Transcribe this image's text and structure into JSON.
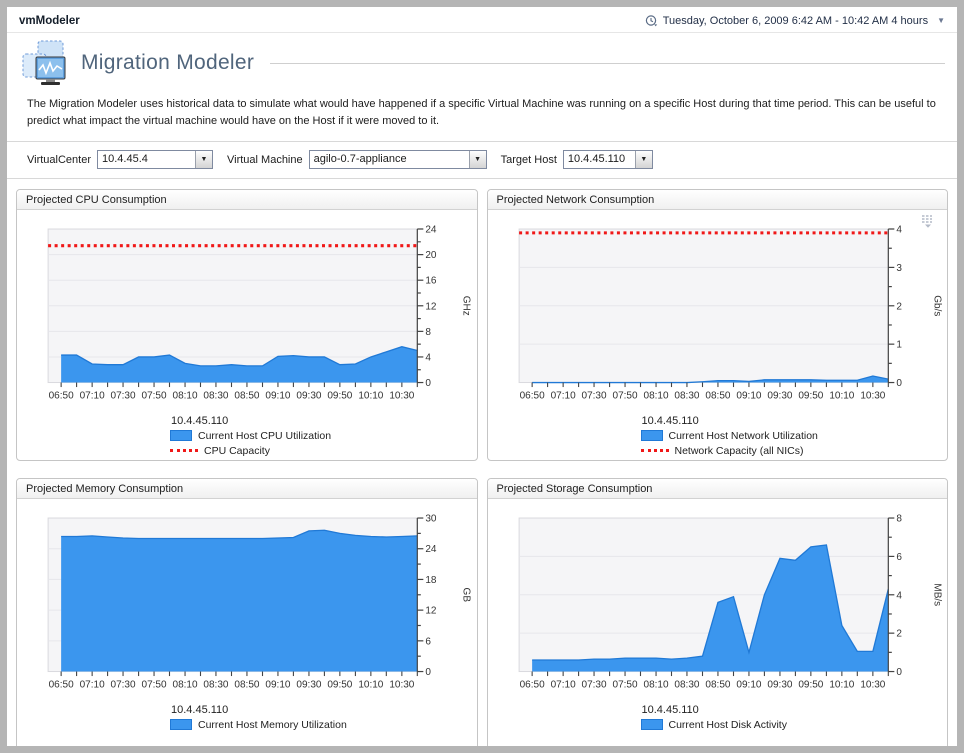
{
  "window": {
    "app_title": "vmModeler",
    "timeframe": "Tuesday, October 6, 2009 6:42 AM - 10:42 AM 4 hours"
  },
  "page": {
    "title": "Migration Modeler",
    "description": "The Migration Modeler uses historical data to simulate what would have happened if a specific Virtual Machine was running on a specific Host during that time period. This can be useful to predict what impact the virtual machine would have on the Host if it were moved to it."
  },
  "controls": {
    "virtualcenter_label": "VirtualCenter",
    "virtualcenter_value": "10.4.45.4",
    "vm_label": "Virtual Machine",
    "vm_value": "agilo-0.7-appliance",
    "target_label": "Target Host",
    "target_value": "10.4.45.110"
  },
  "colors": {
    "area_fill": "#3b96ee",
    "area_stroke": "#2079d6",
    "capacity": "#f01818",
    "plot_bg": "#f5f5f7",
    "grid": "#e6e6eb",
    "axis": "#444444"
  },
  "chart_data": [
    {
      "id": "cpu",
      "panel_title": "Projected CPU Consumption",
      "type": "area",
      "host_label": "10.4.45.110",
      "unit": "GHz",
      "ylim": [
        0,
        24
      ],
      "y_major_ticks": [
        0,
        4,
        8,
        12,
        16,
        20,
        24
      ],
      "y_minor_step": 2,
      "capacity": 21.4,
      "menu_icon": false,
      "x": [
        "06:50",
        "07:00",
        "07:10",
        "07:20",
        "07:30",
        "07:40",
        "07:50",
        "08:00",
        "08:10",
        "08:20",
        "08:30",
        "08:40",
        "08:50",
        "09:00",
        "09:10",
        "09:20",
        "09:30",
        "09:40",
        "09:50",
        "10:00",
        "10:10",
        "10:20",
        "10:30",
        "10:40"
      ],
      "x_tick_labels": [
        "06:50",
        "07:10",
        "07:30",
        "07:50",
        "08:10",
        "08:30",
        "08:50",
        "09:10",
        "09:30",
        "09:50",
        "10:10",
        "10:30"
      ],
      "values": [
        4.3,
        4.3,
        2.9,
        2.8,
        2.8,
        4.0,
        4.0,
        4.3,
        3.0,
        2.6,
        2.6,
        2.8,
        2.6,
        2.6,
        4.1,
        4.2,
        4.0,
        4.0,
        2.8,
        2.9,
        4.0,
        4.8,
        5.6,
        5.0
      ],
      "legend": [
        {
          "type": "area",
          "label": "Current Host CPU Utilization"
        },
        {
          "type": "capacity",
          "label": "CPU Capacity"
        }
      ]
    },
    {
      "id": "network",
      "panel_title": "Projected Network Consumption",
      "type": "area",
      "host_label": "10.4.45.110",
      "unit": "Gb/s",
      "ylim": [
        0,
        4
      ],
      "y_major_ticks": [
        0,
        1,
        2,
        3,
        4
      ],
      "y_minor_step": 0.5,
      "capacity": 3.9,
      "menu_icon": true,
      "x": [
        "06:50",
        "07:00",
        "07:10",
        "07:20",
        "07:30",
        "07:40",
        "07:50",
        "08:00",
        "08:10",
        "08:20",
        "08:30",
        "08:40",
        "08:50",
        "09:00",
        "09:10",
        "09:20",
        "09:30",
        "09:40",
        "09:50",
        "10:00",
        "10:10",
        "10:20",
        "10:30",
        "10:40"
      ],
      "x_tick_labels": [
        "06:50",
        "07:10",
        "07:30",
        "07:50",
        "08:10",
        "08:30",
        "08:50",
        "09:10",
        "09:30",
        "09:50",
        "10:10",
        "10:30"
      ],
      "values": [
        0,
        0,
        0,
        0,
        0,
        0,
        0,
        0,
        0,
        0,
        0,
        0.02,
        0.05,
        0.05,
        0.03,
        0.07,
        0.07,
        0.07,
        0.07,
        0.06,
        0.06,
        0.06,
        0.17,
        0.09
      ],
      "legend": [
        {
          "type": "area",
          "label": "Current Host Network Utilization"
        },
        {
          "type": "capacity",
          "label": "Network Capacity (all NICs)"
        }
      ]
    },
    {
      "id": "memory",
      "panel_title": "Projected Memory Consumption",
      "type": "area",
      "host_label": "10.4.45.110",
      "unit": "GB",
      "ylim": [
        0,
        30
      ],
      "y_major_ticks": [
        0,
        6,
        12,
        18,
        24,
        30
      ],
      "y_minor_step": 3,
      "capacity": null,
      "menu_icon": false,
      "x": [
        "06:50",
        "07:00",
        "07:10",
        "07:20",
        "07:30",
        "07:40",
        "07:50",
        "08:00",
        "08:10",
        "08:20",
        "08:30",
        "08:40",
        "08:50",
        "09:00",
        "09:10",
        "09:20",
        "09:30",
        "09:40",
        "09:50",
        "10:00",
        "10:10",
        "10:20",
        "10:30",
        "10:40"
      ],
      "x_tick_labels": [
        "06:50",
        "07:10",
        "07:30",
        "07:50",
        "08:10",
        "08:30",
        "08:50",
        "09:10",
        "09:30",
        "09:50",
        "10:10",
        "10:30"
      ],
      "values": [
        26.4,
        26.4,
        26.5,
        26.3,
        26.1,
        26.0,
        26.0,
        26.0,
        26.0,
        26.0,
        26.0,
        26.0,
        26.0,
        26.0,
        26.1,
        26.2,
        27.5,
        27.6,
        27.0,
        26.6,
        26.4,
        26.3,
        26.4,
        26.5
      ],
      "legend": [
        {
          "type": "area",
          "label": "Current Host Memory Utilization"
        }
      ]
    },
    {
      "id": "storage",
      "panel_title": "Projected Storage Consumption",
      "type": "area",
      "host_label": "10.4.45.110",
      "unit": "MB/s",
      "ylim": [
        0,
        8
      ],
      "y_major_ticks": [
        0,
        2,
        4,
        6,
        8
      ],
      "y_minor_step": 1,
      "capacity": null,
      "menu_icon": false,
      "x": [
        "06:50",
        "07:00",
        "07:10",
        "07:20",
        "07:30",
        "07:40",
        "07:50",
        "08:00",
        "08:10",
        "08:20",
        "08:30",
        "08:40",
        "08:50",
        "09:00",
        "09:10",
        "09:20",
        "09:30",
        "09:40",
        "09:50",
        "10:00",
        "10:10",
        "10:20",
        "10:30",
        "10:40"
      ],
      "x_tick_labels": [
        "06:50",
        "07:10",
        "07:30",
        "07:50",
        "08:10",
        "08:30",
        "08:50",
        "09:10",
        "09:30",
        "09:50",
        "10:10",
        "10:30"
      ],
      "values": [
        0.6,
        0.6,
        0.6,
        0.6,
        0.65,
        0.65,
        0.7,
        0.7,
        0.7,
        0.65,
        0.7,
        0.8,
        3.6,
        3.9,
        1.0,
        4.0,
        5.9,
        5.8,
        6.5,
        6.6,
        2.4,
        1.05,
        1.05,
        4.3
      ],
      "legend": [
        {
          "type": "area",
          "label": "Current Host Disk Activity"
        }
      ]
    }
  ]
}
